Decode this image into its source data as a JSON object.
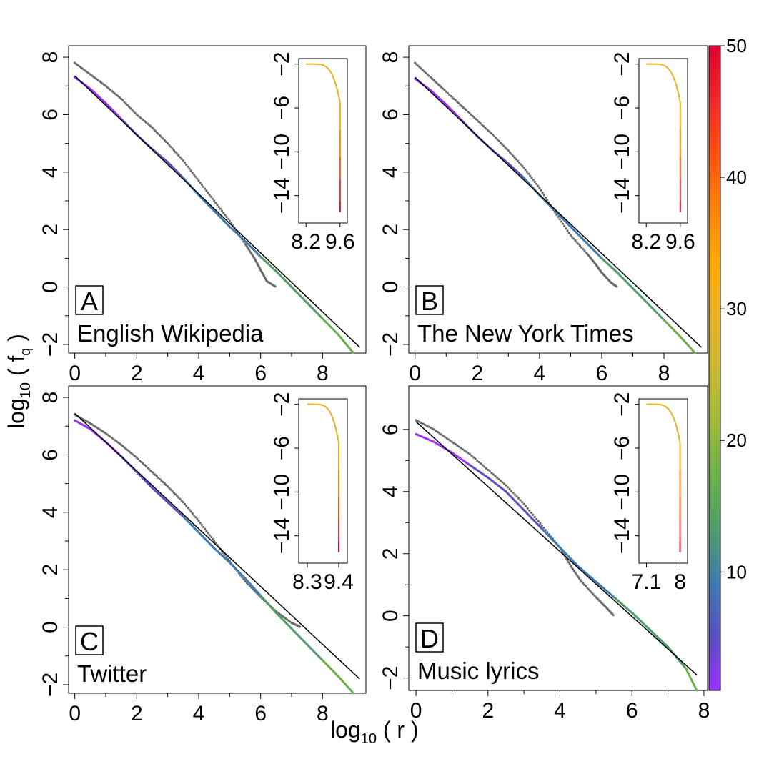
{
  "figure": {
    "xlabel": "log10 ( r )",
    "xlabel_base": "log",
    "xlabel_sub": "10",
    "xlabel_rest": " ( r )",
    "ylabel_base": "log",
    "ylabel_sub": "10",
    "ylabel_rest": " ( f",
    "ylabel_sub2": "q",
    "ylabel_end": " )"
  },
  "colorbar": {
    "range": [
      1,
      50
    ],
    "ticks": [
      10,
      20,
      30,
      40,
      50
    ],
    "tick_labels": [
      "10",
      "20",
      "30",
      "40",
      "50"
    ],
    "colors": [
      "#9b30ff",
      "#5a4fbf",
      "#3e7bb0",
      "#4e9e6a",
      "#6ab04a",
      "#a0b838",
      "#c8b830",
      "#e8b020",
      "#ffa800",
      "#ff8000",
      "#ff5010",
      "#f02828",
      "#e00030"
    ]
  },
  "chart_data": [
    {
      "type": "line",
      "panel": "A",
      "name_label": "English Wikipedia",
      "xlim": [
        -0.2,
        9.4
      ],
      "ylim": [
        -2.3,
        8.4
      ],
      "xticks": [
        0,
        2,
        4,
        6,
        8
      ],
      "yticks": [
        -2,
        0,
        2,
        4,
        6,
        8
      ],
      "fit_line": {
        "x": [
          0,
          9.2
        ],
        "y": [
          7.35,
          -2.1
        ]
      },
      "grey_curve": {
        "x": [
          0,
          0.5,
          1,
          1.5,
          2,
          2.5,
          3,
          3.5,
          4,
          4.5,
          5,
          5.5,
          5.8,
          6.0,
          6.2,
          6.5
        ],
        "y": [
          7.8,
          7.4,
          7.0,
          6.55,
          6.0,
          5.55,
          5.0,
          4.4,
          3.7,
          3.0,
          2.3,
          1.5,
          1.0,
          0.6,
          0.2,
          0
        ]
      },
      "colored_curve": {
        "x": [
          0,
          0.5,
          1,
          1.5,
          2,
          2.5,
          3,
          3.5,
          4,
          4.5,
          5,
          5.5,
          6,
          6.5,
          7,
          7.5,
          8,
          8.5,
          9
        ],
        "y": [
          7.3,
          6.9,
          6.4,
          5.85,
          5.3,
          4.8,
          4.35,
          3.8,
          3.2,
          2.65,
          2.1,
          1.6,
          1.05,
          0.55,
          0.0,
          -0.55,
          -1.1,
          -1.65,
          -2.3
        ]
      },
      "inset": {
        "xticks": [
          8.2,
          9.6
        ],
        "xtick_labels": [
          "8.2",
          "9.6"
        ],
        "yticks": [
          -2,
          -6,
          -10,
          -14
        ],
        "ytick_labels": [
          "−2",
          "−6",
          "−10",
          "−14"
        ],
        "xlim": [
          7.9,
          9.9
        ],
        "ylim": [
          -16.5,
          -1.5
        ]
      }
    },
    {
      "type": "line",
      "panel": "B",
      "name_label": "The New York Times",
      "xlim": [
        -0.2,
        9.4
      ],
      "ylim": [
        -2.3,
        8.4
      ],
      "xticks": [
        0,
        2,
        4,
        6,
        8
      ],
      "yticks": [
        -2,
        0,
        2,
        4,
        6,
        8
      ],
      "fit_line": {
        "x": [
          0,
          9.2
        ],
        "y": [
          7.3,
          -2.1
        ]
      },
      "grey_curve": {
        "x": [
          0,
          0.5,
          1,
          1.5,
          2,
          2.5,
          3,
          3.5,
          4,
          4.5,
          5,
          5.5,
          5.8,
          6.0,
          6.3,
          6.5
        ],
        "y": [
          7.8,
          7.3,
          6.8,
          6.3,
          5.8,
          5.3,
          4.75,
          4.15,
          3.45,
          2.6,
          1.8,
          1.2,
          0.8,
          0.5,
          0.15,
          0
        ]
      },
      "colored_curve": {
        "x": [
          0,
          0.5,
          1,
          1.5,
          2,
          2.5,
          3,
          3.5,
          4,
          4.5,
          5,
          5.5,
          6,
          6.5,
          7,
          7.5,
          8,
          8.5,
          9
        ],
        "y": [
          7.25,
          6.85,
          6.35,
          5.8,
          5.25,
          4.75,
          4.3,
          3.8,
          3.2,
          2.65,
          2.1,
          1.55,
          1.0,
          0.5,
          -0.05,
          -0.6,
          -1.15,
          -1.7,
          -2.3
        ]
      },
      "inset": {
        "xticks": [
          8.2,
          9.6
        ],
        "xtick_labels": [
          "8.2",
          "9.6"
        ],
        "yticks": [
          -2,
          -6,
          -10,
          -14
        ],
        "ytick_labels": [
          "−2",
          "−6",
          "−10",
          "−14"
        ],
        "xlim": [
          7.9,
          9.9
        ],
        "ylim": [
          -16.5,
          -1.5
        ]
      }
    },
    {
      "type": "line",
      "panel": "C",
      "name_label": "Twitter",
      "xlim": [
        -0.2,
        9.4
      ],
      "ylim": [
        -2.3,
        8.4
      ],
      "xticks": [
        0,
        2,
        4,
        6,
        8
      ],
      "yticks": [
        -2,
        0,
        2,
        4,
        6,
        8
      ],
      "fit_line": {
        "x": [
          0,
          9.2
        ],
        "y": [
          7.45,
          -1.8
        ]
      },
      "grey_curve": {
        "x": [
          0,
          0.5,
          1,
          1.5,
          2,
          2.5,
          3,
          3.5,
          4,
          4.5,
          5,
          5.5,
          6,
          6.5,
          7,
          7.3
        ],
        "y": [
          7.4,
          7.1,
          6.75,
          6.35,
          5.9,
          5.4,
          4.9,
          4.35,
          3.7,
          3.0,
          2.3,
          1.6,
          1.05,
          0.55,
          0.15,
          0
        ]
      },
      "colored_curve": {
        "x": [
          0,
          0.5,
          1,
          1.5,
          2,
          2.5,
          3,
          3.5,
          4,
          4.5,
          5,
          5.5,
          6,
          6.5,
          7,
          7.5,
          8,
          8.5,
          9
        ],
        "y": [
          7.2,
          6.9,
          6.45,
          5.95,
          5.4,
          4.85,
          4.35,
          3.85,
          3.3,
          2.75,
          2.25,
          1.7,
          1.1,
          0.5,
          -0.05,
          -0.6,
          -1.15,
          -1.7,
          -2.3
        ]
      },
      "inset": {
        "xticks": [
          8.3,
          9.4
        ],
        "xtick_labels": [
          "8.3",
          "9.4"
        ],
        "yticks": [
          -2,
          -6,
          -10,
          -14
        ],
        "ytick_labels": [
          "−2",
          "−6",
          "−10",
          "−14"
        ],
        "xlim": [
          8.0,
          9.7
        ],
        "ylim": [
          -16.5,
          -1.5
        ]
      }
    },
    {
      "type": "line",
      "panel": "D",
      "name_label": "Music lyrics",
      "xlim": [
        -0.2,
        8.1
      ],
      "ylim": [
        -2.4,
        7.4
      ],
      "xticks": [
        0,
        2,
        4,
        6,
        8
      ],
      "yticks": [
        -2,
        0,
        2,
        4,
        6
      ],
      "fit_line": {
        "x": [
          0,
          7.8
        ],
        "y": [
          6.25,
          -1.9
        ]
      },
      "grey_curve": {
        "x": [
          0,
          0.5,
          1,
          1.5,
          2,
          2.5,
          3,
          3.5,
          4,
          4.3,
          4.6,
          5.0,
          5.3,
          5.5
        ],
        "y": [
          6.3,
          6.0,
          5.6,
          5.2,
          4.7,
          4.2,
          3.6,
          2.9,
          2.2,
          1.6,
          1.1,
          0.6,
          0.25,
          0
        ]
      },
      "colored_curve": {
        "x": [
          0,
          0.5,
          1,
          1.5,
          2,
          2.5,
          3,
          3.5,
          4,
          4.5,
          5,
          5.5,
          6,
          6.5,
          7,
          7.5,
          7.8
        ],
        "y": [
          5.85,
          5.6,
          5.25,
          4.85,
          4.45,
          4.0,
          3.4,
          2.8,
          2.2,
          1.6,
          1.1,
          0.6,
          0.1,
          -0.45,
          -1.0,
          -1.7,
          -2.4
        ]
      },
      "inset": {
        "xticks": [
          7.1,
          8
        ],
        "xtick_labels": [
          "7.1",
          "8"
        ],
        "yticks": [
          -2,
          -6,
          -10,
          -14
        ],
        "ytick_labels": [
          "−2",
          "−6",
          "−10",
          "−14"
        ],
        "xlim": [
          6.9,
          8.2
        ],
        "ylim": [
          -16.5,
          -1.5
        ]
      }
    }
  ]
}
